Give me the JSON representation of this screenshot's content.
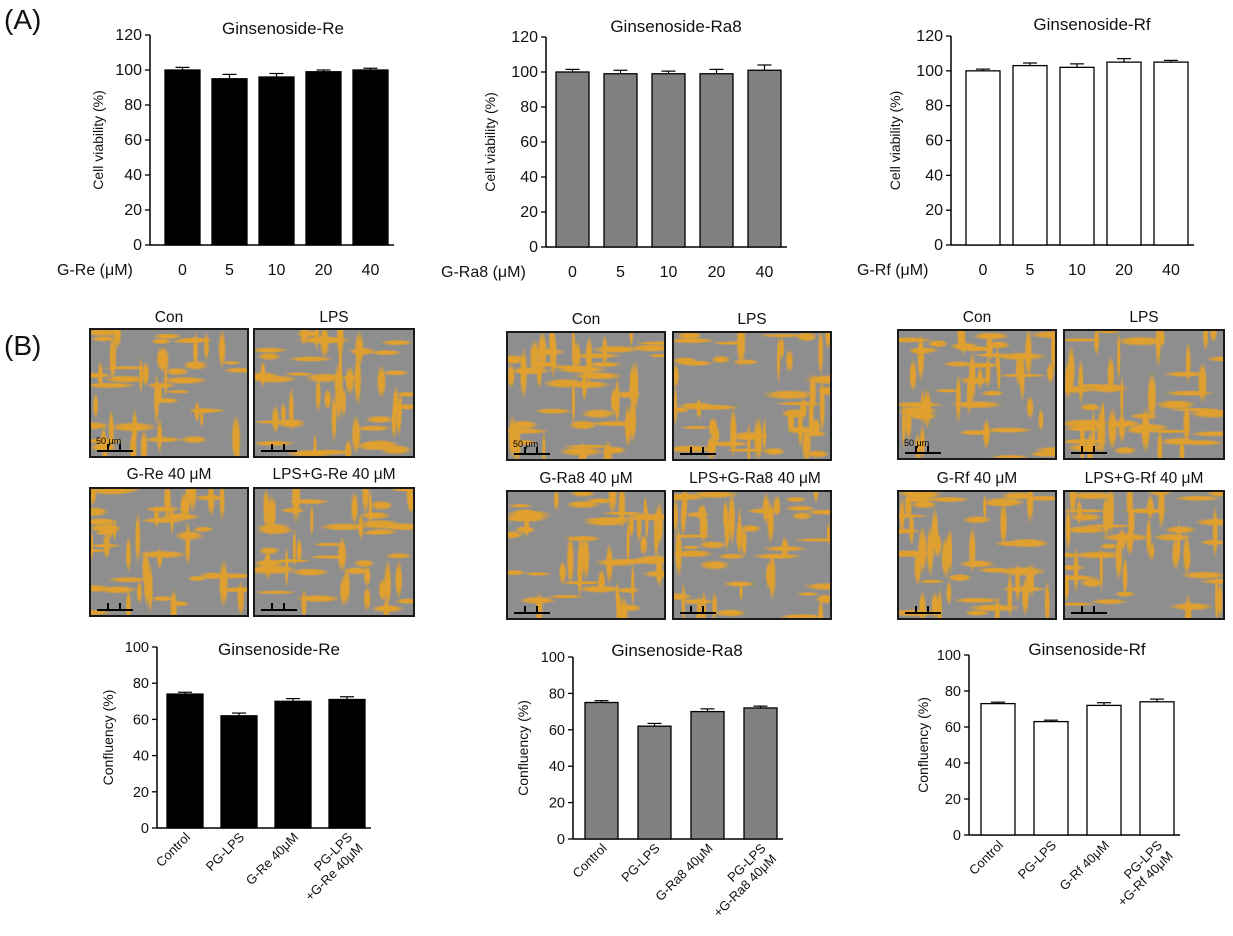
{
  "panel_labels": {
    "a": "(A)",
    "b": "(B)"
  },
  "colors": {
    "re": "#000000",
    "ra8": "#808080",
    "rf": "#ffffff",
    "cell": "#e0a030",
    "background": "#8e8e8e"
  },
  "chart_data": [
    {
      "id": "viability-re",
      "type": "bar",
      "title": "Ginsenoside-Re",
      "ylabel": "Cell viability (%)",
      "xlabel": "G-Re (μM)",
      "categories": [
        "0",
        "5",
        "10",
        "20",
        "40"
      ],
      "values": [
        100,
        95,
        96,
        99,
        100
      ],
      "errors": [
        1.5,
        2.5,
        2,
        1,
        1
      ],
      "ylim": [
        0,
        120
      ],
      "yticks": [
        "0",
        "20",
        "40",
        "60",
        "80",
        "100",
        "120"
      ],
      "bar_color": "#000000"
    },
    {
      "id": "viability-ra8",
      "type": "bar",
      "title": "Ginsenoside-Ra8",
      "ylabel": "Cell viability (%)",
      "xlabel": "G-Ra8 (μM)",
      "categories": [
        "0",
        "5",
        "10",
        "20",
        "40"
      ],
      "values": [
        100,
        99,
        99,
        99,
        101
      ],
      "errors": [
        1.5,
        2,
        1.5,
        2.5,
        3
      ],
      "ylim": [
        0,
        120
      ],
      "yticks": [
        "0",
        "20",
        "40",
        "60",
        "80",
        "100",
        "120"
      ],
      "bar_color": "#808080"
    },
    {
      "id": "viability-rf",
      "type": "bar",
      "title": "Ginsenoside-Rf",
      "ylabel": "Cell viability (%)",
      "xlabel": "G-Rf  (μM)",
      "categories": [
        "0",
        "5",
        "10",
        "20",
        "40"
      ],
      "values": [
        100,
        103,
        102,
        105,
        105
      ],
      "errors": [
        1,
        1.5,
        2,
        2,
        1
      ],
      "ylim": [
        0,
        120
      ],
      "yticks": [
        "0",
        "20",
        "40",
        "60",
        "80",
        "100",
        "120"
      ],
      "bar_color": "#ffffff"
    },
    {
      "id": "confluency-re",
      "type": "bar",
      "title": "Ginsenoside-Re",
      "ylabel": "Confluency (%)",
      "categories": [
        "Control",
        "PG-LPS",
        "G-Re 40μM",
        "PG-LPS\n+G-Re 40μM"
      ],
      "values": [
        74,
        62,
        70,
        71
      ],
      "errors": [
        1,
        1.5,
        1.5,
        1.5
      ],
      "ylim": [
        0,
        100
      ],
      "yticks": [
        "0",
        "20",
        "40",
        "60",
        "80",
        "100"
      ],
      "bar_color": "#000000"
    },
    {
      "id": "confluency-ra8",
      "type": "bar",
      "title": "Ginsenoside-Ra8",
      "ylabel": "Confluency (%)",
      "categories": [
        "Control",
        "PG-LPS",
        "G-Ra8 40μM",
        "PG-LPS\n+G-Ra8 40μM"
      ],
      "values": [
        75,
        62,
        70,
        72
      ],
      "errors": [
        1,
        1.5,
        1.5,
        1
      ],
      "ylim": [
        0,
        100
      ],
      "yticks": [
        "0",
        "20",
        "40",
        "60",
        "80",
        "100"
      ],
      "bar_color": "#808080"
    },
    {
      "id": "confluency-rf",
      "type": "bar",
      "title": "Ginsenoside-Rf",
      "ylabel": "Confluency (%)",
      "categories": [
        "Control",
        "PG-LPS",
        "G-Rf 40μM",
        "PG-LPS\n+G-Rf 40μM"
      ],
      "values": [
        73,
        63,
        72,
        74
      ],
      "errors": [
        0.8,
        0.8,
        1.5,
        1.5
      ],
      "ylim": [
        0,
        100
      ],
      "yticks": [
        "0",
        "20",
        "40",
        "60",
        "80",
        "100"
      ],
      "bar_color": "#ffffff"
    }
  ],
  "micrographs": [
    {
      "group": "re",
      "images": [
        {
          "title": "Con",
          "scale_label": "50 μm"
        },
        {
          "title": "LPS"
        },
        {
          "title": "G-Re 40 μM"
        },
        {
          "title": "LPS+G-Re 40 μM"
        }
      ]
    },
    {
      "group": "ra8",
      "images": [
        {
          "title": "Con",
          "scale_label": "50 μm"
        },
        {
          "title": "LPS"
        },
        {
          "title": "G-Ra8 40 μM"
        },
        {
          "title": "LPS+G-Ra8 40 μM"
        }
      ]
    },
    {
      "group": "rf",
      "images": [
        {
          "title": "Con",
          "scale_label": "50 μm"
        },
        {
          "title": "LPS"
        },
        {
          "title": "G-Rf 40 μM"
        },
        {
          "title": "LPS+G-Rf 40 μM"
        }
      ]
    }
  ]
}
